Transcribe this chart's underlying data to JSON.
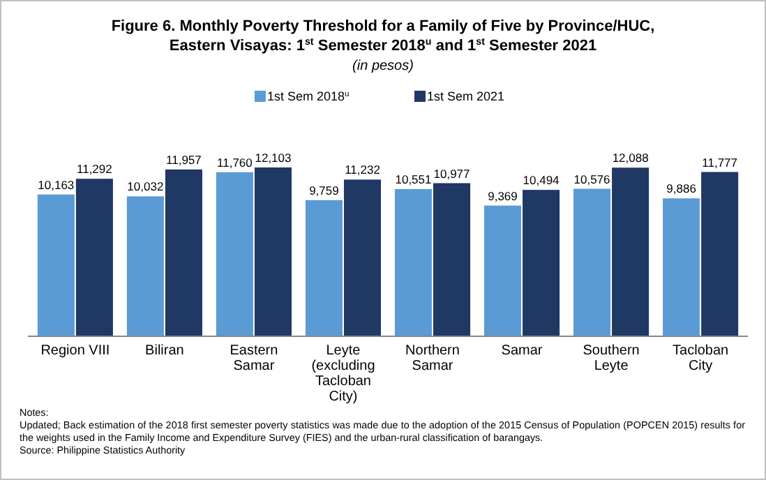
{
  "chart_data": {
    "type": "bar",
    "title": "Figure 6. Monthly Poverty Threshold for a Family of Five by Province/HUC, Eastern Visayas: 1$^{st}$ Semester 2018$^{u}$ and 1$^{st}$ Semester 2021",
    "subtitle": "(in pesos)",
    "categories": [
      "Region VIII",
      "Biliran",
      "Eastern Samar",
      "Leyte (excluding Tacloban City)",
      "Northern Samar",
      "Samar",
      "Southern Leyte",
      "Tacloban City"
    ],
    "series": [
      {
        "name": "1st Sem 2018$^{u}$",
        "color": "#5b9bd5",
        "values": [
          10163,
          10032,
          11760,
          9759,
          10551,
          9369,
          10576,
          9886
        ],
        "value_labels": [
          "10,163",
          "10,032",
          "11,760",
          "9,759",
          "10,551",
          "9,369",
          "10,576",
          "9,886"
        ]
      },
      {
        "name": "1st Sem 2021",
        "color": "#1f3864",
        "values": [
          11292,
          11957,
          12103,
          11232,
          10977,
          10494,
          12088,
          11777
        ],
        "value_labels": [
          "11,292",
          "11,957",
          "12,103",
          "11,232",
          "10,977",
          "10,494",
          "12,088",
          "11,777"
        ]
      }
    ],
    "legend": "top",
    "grid": false,
    "annotations": [
      "Notes:",
      "Updated; Back estimation of the 2018 first semester poverty statistics was made due to the adoption of the 2015 Census of Population (POPCEN 2015) results for the weights used in the Family Income and Expenditure Survey (FIES) and the urban-rural classification of barangays.",
      "Source: Philippine Statistics Authority"
    ]
  }
}
